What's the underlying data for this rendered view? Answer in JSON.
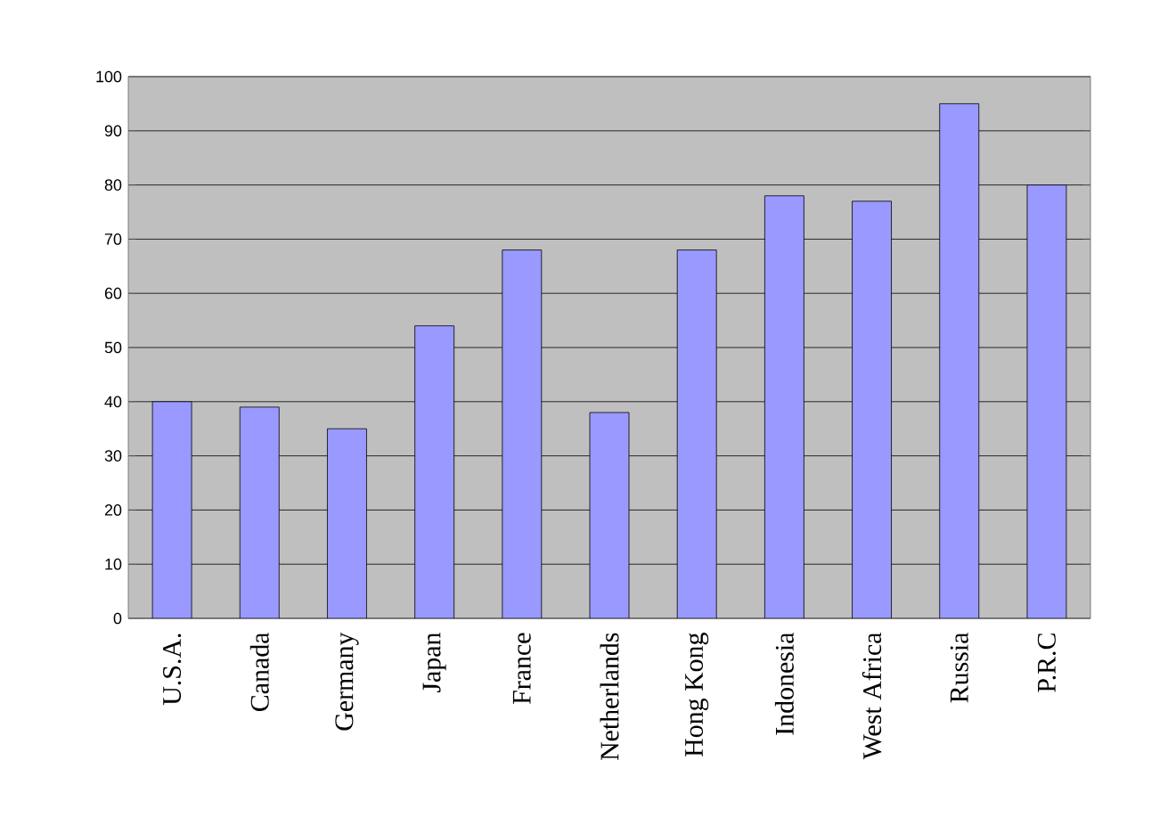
{
  "chart_data": {
    "type": "bar",
    "categories": [
      "U.S.A.",
      "Canada",
      "Germany",
      "Japan",
      "France",
      "Netherlands",
      "Hong Kong",
      "Indonesia",
      "West Africa",
      "Russia",
      "P.R.C"
    ],
    "values": [
      40,
      39,
      35,
      54,
      68,
      38,
      68,
      78,
      77,
      95,
      80
    ],
    "color": "#9999ff",
    "ylim": [
      0,
      100
    ],
    "yticks": [
      0,
      10,
      20,
      30,
      40,
      50,
      60,
      70,
      80,
      90,
      100
    ],
    "grid": "y"
  }
}
